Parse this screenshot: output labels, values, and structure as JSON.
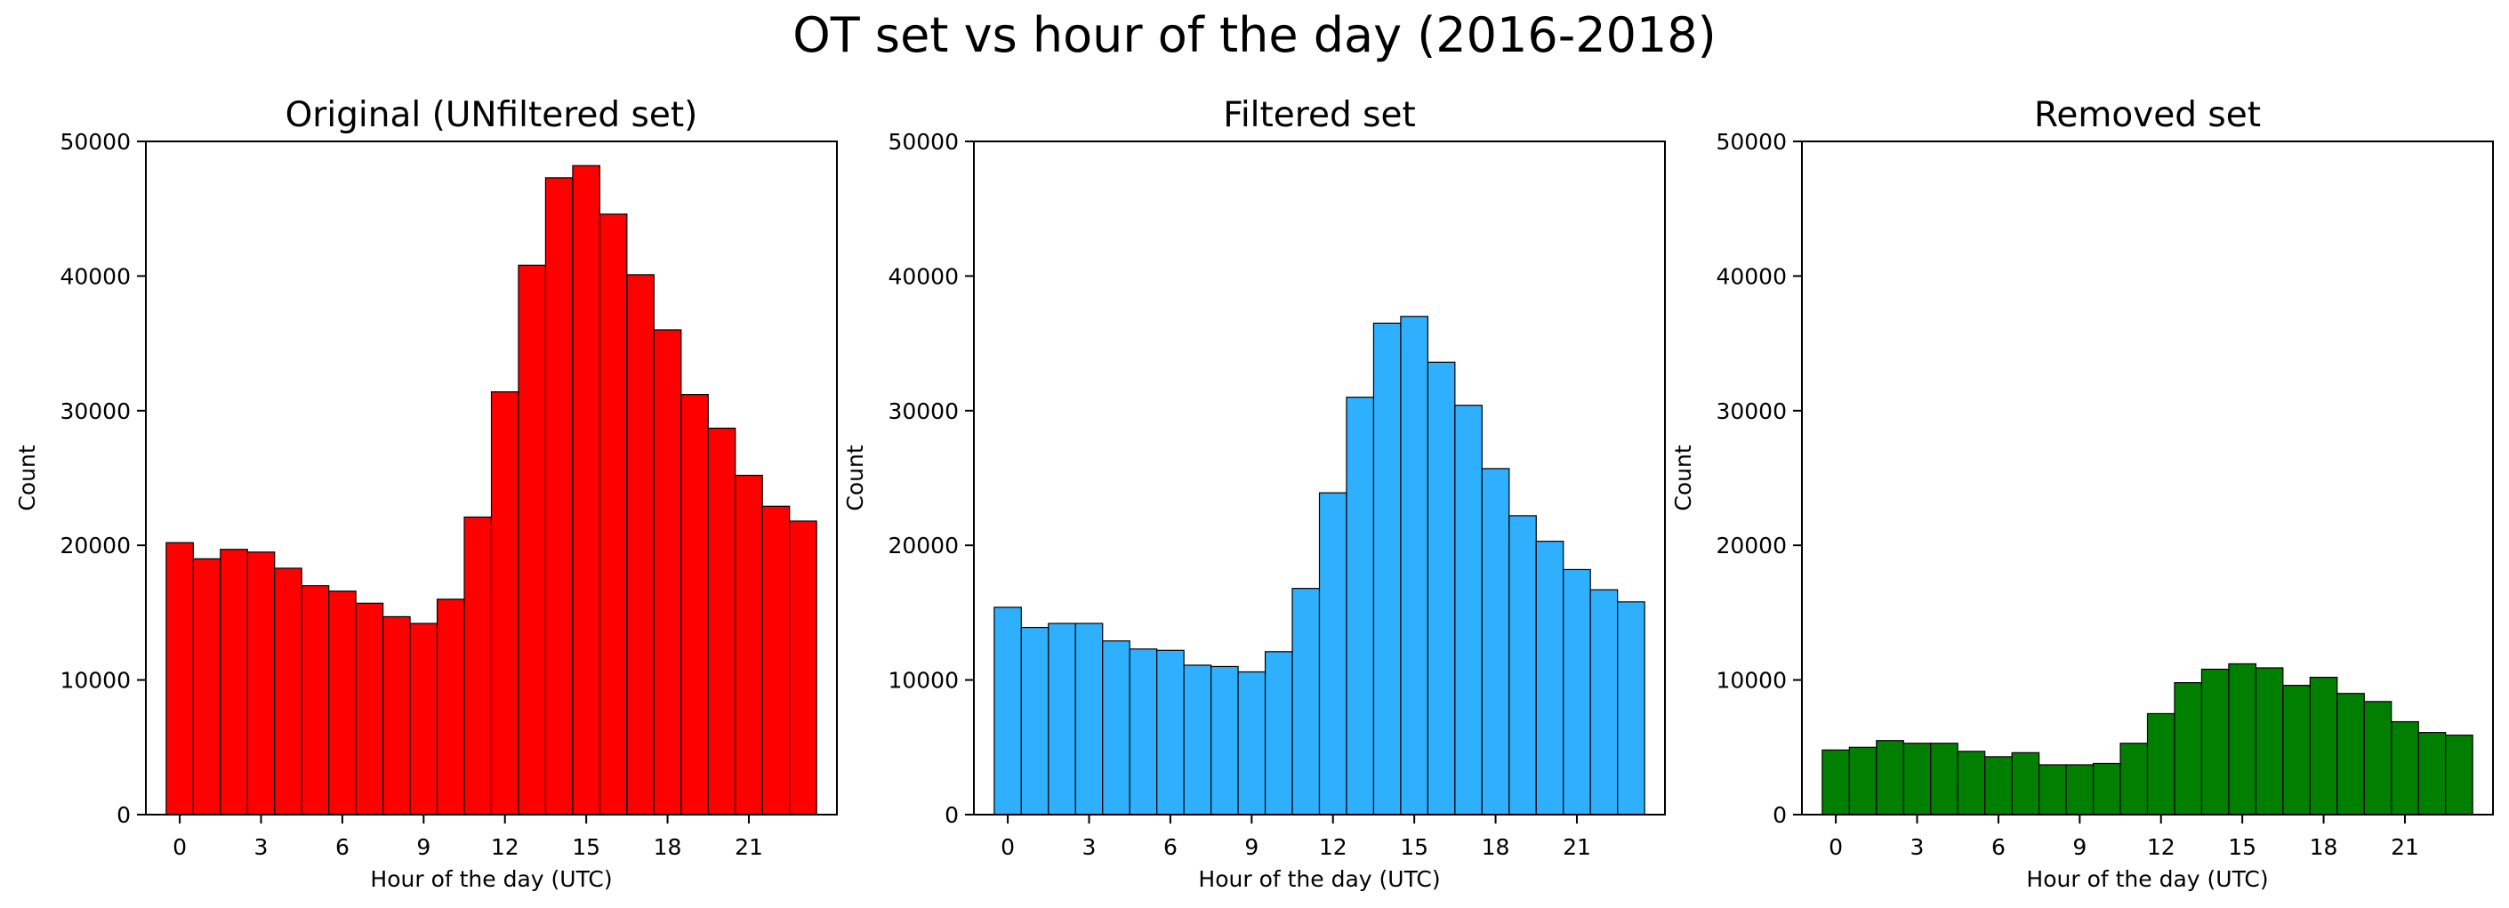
{
  "figure": {
    "title": "OT set vs hour of the day (2016-2018)"
  },
  "chart_data": [
    {
      "type": "bar",
      "title": "Original (UNfiltered set)",
      "xlabel": "Hour of the day (UTC)",
      "ylabel": "Count",
      "color": "#ff0000",
      "x": [
        0,
        1,
        2,
        3,
        4,
        5,
        6,
        7,
        8,
        9,
        10,
        11,
        12,
        13,
        14,
        15,
        16,
        17,
        18,
        19,
        20,
        21,
        22,
        23
      ],
      "values": [
        20200,
        19000,
        19700,
        19500,
        18300,
        17000,
        16600,
        15700,
        14700,
        14200,
        16000,
        22100,
        31400,
        40800,
        47300,
        48200,
        44600,
        40100,
        36000,
        31200,
        28700,
        25200,
        22900,
        21800
      ],
      "xticks": [
        "0",
        "3",
        "6",
        "9",
        "12",
        "15",
        "18",
        "21"
      ],
      "yticks": [
        "0",
        "10000",
        "20000",
        "30000",
        "40000",
        "50000"
      ],
      "ylim": [
        0,
        50000
      ],
      "show_ylabel": true,
      "grid": false
    },
    {
      "type": "bar",
      "title": "Filtered set",
      "xlabel": "Hour of the day (UTC)",
      "ylabel": "Count",
      "color": "#2eb0ff",
      "x": [
        0,
        1,
        2,
        3,
        4,
        5,
        6,
        7,
        8,
        9,
        10,
        11,
        12,
        13,
        14,
        15,
        16,
        17,
        18,
        19,
        20,
        21,
        22,
        23
      ],
      "values": [
        15400,
        13900,
        14200,
        14200,
        12900,
        12300,
        12200,
        11100,
        11000,
        10600,
        12100,
        16800,
        23900,
        31000,
        36500,
        37000,
        33600,
        30400,
        25700,
        22200,
        20300,
        18200,
        16700,
        15800
      ],
      "xticks": [
        "0",
        "3",
        "6",
        "9",
        "12",
        "15",
        "18",
        "21"
      ],
      "yticks": [
        "0",
        "10000",
        "20000",
        "30000",
        "40000",
        "50000"
      ],
      "ylim": [
        0,
        50000
      ],
      "show_ylabel": true,
      "grid": false
    },
    {
      "type": "bar",
      "title": "Removed set",
      "xlabel": "Hour of the day (UTC)",
      "ylabel": "Count",
      "color": "#007f00",
      "x": [
        0,
        1,
        2,
        3,
        4,
        5,
        6,
        7,
        8,
        9,
        10,
        11,
        12,
        13,
        14,
        15,
        16,
        17,
        18,
        19,
        20,
        21,
        22,
        23
      ],
      "values": [
        4800,
        5000,
        5500,
        5300,
        5300,
        4700,
        4300,
        4600,
        3700,
        3700,
        3800,
        5300,
        7500,
        9800,
        10800,
        11200,
        10900,
        9600,
        10200,
        9000,
        8400,
        6900,
        6100,
        5900
      ],
      "xticks": [
        "0",
        "3",
        "6",
        "9",
        "12",
        "15",
        "18",
        "21"
      ],
      "yticks": [
        "0",
        "10000",
        "20000",
        "30000",
        "40000",
        "50000"
      ],
      "ylim": [
        0,
        50000
      ],
      "show_ylabel": true,
      "grid": false
    }
  ]
}
